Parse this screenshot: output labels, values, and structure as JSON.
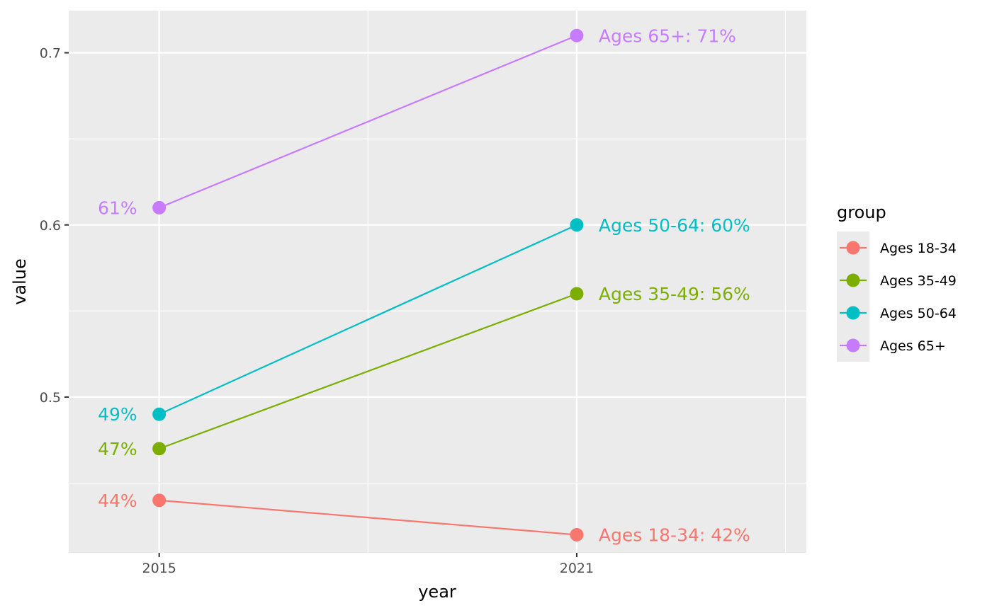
{
  "chart_data": {
    "type": "line",
    "xlabel": "year",
    "ylabel": "value",
    "x": [
      2015,
      2021
    ],
    "x_tick_labels": [
      "2015",
      "2021"
    ],
    "xlim": [
      2013.7,
      2024.3
    ],
    "ylim": [
      0.4095,
      0.7245
    ],
    "y_ticks": [
      0.5,
      0.6,
      0.7
    ],
    "y_tick_labels": [
      "0.5",
      "0.6",
      "0.7"
    ],
    "grid": true,
    "legend": {
      "title": "group",
      "position": "right"
    },
    "series": [
      {
        "name": "Ages 18-34",
        "color": "#F8766D",
        "values": [
          0.44,
          0.42
        ],
        "labels": [
          "44%",
          "Ages 18-34: 42%"
        ]
      },
      {
        "name": "Ages 35-49",
        "color": "#7CAE00",
        "values": [
          0.47,
          0.56
        ],
        "labels": [
          "47%",
          "Ages 35-49: 56%"
        ]
      },
      {
        "name": "Ages 50-64",
        "color": "#00BFC4",
        "values": [
          0.49,
          0.6
        ],
        "labels": [
          "49%",
          "Ages 50-64: 60%"
        ]
      },
      {
        "name": "Ages 65+",
        "color": "#C77CFF",
        "values": [
          0.61,
          0.71
        ],
        "labels": [
          "61%",
          "Ages 65+: 71%"
        ]
      }
    ]
  }
}
